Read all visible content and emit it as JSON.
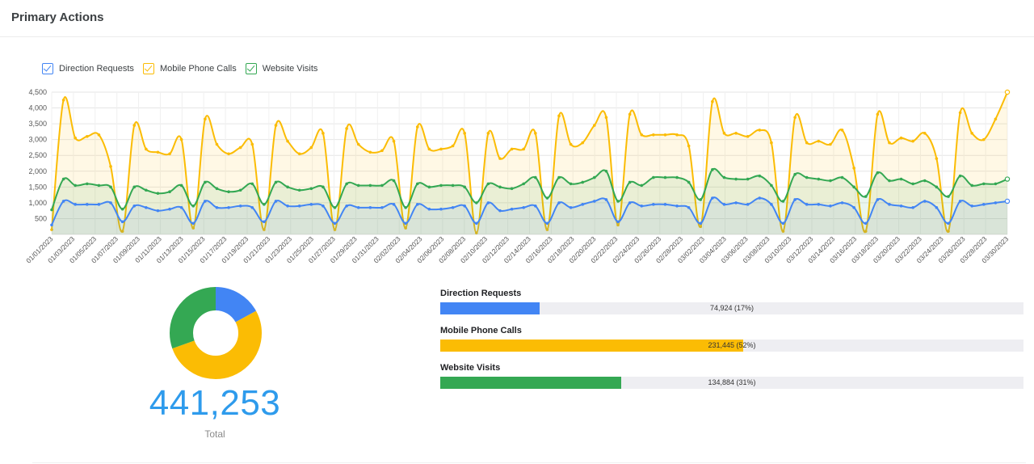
{
  "header": {
    "title": "Primary Actions"
  },
  "legend": [
    {
      "label": "Direction Requests",
      "color": "#4285f4"
    },
    {
      "label": "Mobile Phone Calls",
      "color": "#fbbc04"
    },
    {
      "label": "Website Visits",
      "color": "#34a853"
    }
  ],
  "summary": {
    "total_value": "441,253",
    "total_label": "Total",
    "items": [
      {
        "label": "Direction Requests",
        "value_text": "74,924 (17%)",
        "fraction": 0.17,
        "color": "#4285f4"
      },
      {
        "label": "Mobile Phone Calls",
        "value_text": "231,445 (52%)",
        "fraction": 0.52,
        "color": "#fbbc04"
      },
      {
        "label": "Website Visits",
        "value_text": "134,884 (31%)",
        "fraction": 0.31,
        "color": "#34a853"
      }
    ]
  },
  "chart_data": [
    {
      "type": "line",
      "ylim": [
        0,
        4500
      ],
      "yticks": [
        "500",
        "1,000",
        "1,500",
        "2,000",
        "2,500",
        "3,000",
        "3,500",
        "4,000",
        "4,500"
      ],
      "xticks": [
        "01/01/2023",
        "01/03/2023",
        "01/05/2023",
        "01/07/2023",
        "01/09/2023",
        "01/11/2023",
        "01/13/2023",
        "01/15/2023",
        "01/17/2023",
        "01/19/2023",
        "01/21/2023",
        "01/23/2023",
        "01/25/2023",
        "01/27/2023",
        "01/29/2023",
        "01/31/2023",
        "02/02/2023",
        "02/04/2023",
        "02/06/2023",
        "02/08/2023",
        "02/10/2023",
        "02/12/2023",
        "02/14/2023",
        "02/16/2023",
        "02/18/2023",
        "02/20/2023",
        "02/22/2023",
        "02/24/2023",
        "02/26/2023",
        "02/28/2023",
        "03/02/2023",
        "03/04/2023",
        "03/06/2023",
        "03/08/2023",
        "03/10/2023",
        "03/12/2023",
        "03/14/2023",
        "03/16/2023",
        "03/18/2023",
        "03/20/2023",
        "03/22/2023",
        "03/24/2023",
        "03/26/2023",
        "03/28/2023",
        "03/30/2023"
      ],
      "grid": true,
      "legend": "top-left",
      "series": [
        {
          "name": "Mobile Phone Calls",
          "color": "#fbbc04",
          "values": [
            150,
            4250,
            3050,
            3100,
            3150,
            2150,
            100,
            3450,
            2700,
            2600,
            2550,
            3000,
            200,
            3650,
            2850,
            2550,
            2750,
            2850,
            150,
            3450,
            2950,
            2550,
            2750,
            3200,
            150,
            3350,
            2850,
            2600,
            2650,
            2950,
            200,
            3400,
            2700,
            2700,
            2800,
            3200,
            50,
            3200,
            2400,
            2700,
            2700,
            3200,
            150,
            3750,
            2850,
            2900,
            3450,
            3700,
            300,
            3800,
            3150,
            3150,
            3150,
            3150,
            2800,
            250,
            4200,
            3200,
            3200,
            3100,
            3300,
            2900,
            100,
            3700,
            2900,
            2950,
            2850,
            3300,
            2100,
            100,
            3800,
            2900,
            3050,
            2950,
            3200,
            2400,
            100,
            3850,
            3200,
            3000,
            3650,
            4500
          ]
        },
        {
          "name": "Website Visits",
          "color": "#34a853",
          "values": [
            780,
            1750,
            1550,
            1600,
            1550,
            1500,
            800,
            1500,
            1400,
            1300,
            1350,
            1550,
            900,
            1650,
            1450,
            1350,
            1400,
            1600,
            950,
            1650,
            1500,
            1400,
            1450,
            1500,
            850,
            1600,
            1550,
            1550,
            1550,
            1700,
            850,
            1600,
            1500,
            1550,
            1550,
            1500,
            1000,
            1600,
            1500,
            1450,
            1600,
            1800,
            1150,
            1800,
            1600,
            1650,
            1800,
            2000,
            1050,
            1650,
            1550,
            1800,
            1800,
            1800,
            1650,
            1100,
            2050,
            1800,
            1750,
            1750,
            1850,
            1550,
            1050,
            1900,
            1800,
            1750,
            1700,
            1800,
            1500,
            1200,
            1950,
            1700,
            1750,
            1600,
            1700,
            1500,
            1200,
            1850,
            1550,
            1600,
            1600,
            1750
          ]
        },
        {
          "name": "Direction Requests",
          "color": "#4285f4",
          "values": [
            300,
            1050,
            950,
            950,
            950,
            1000,
            400,
            900,
            850,
            750,
            800,
            850,
            350,
            1050,
            850,
            850,
            900,
            850,
            400,
            1050,
            900,
            900,
            950,
            900,
            350,
            900,
            850,
            850,
            850,
            950,
            350,
            950,
            800,
            800,
            850,
            900,
            350,
            1000,
            750,
            800,
            850,
            900,
            350,
            1000,
            850,
            950,
            1050,
            1100,
            400,
            1000,
            900,
            950,
            950,
            900,
            850,
            350,
            1150,
            950,
            1000,
            950,
            1150,
            950,
            350,
            1100,
            950,
            950,
            900,
            1000,
            850,
            350,
            1100,
            950,
            900,
            850,
            1050,
            850,
            350,
            1050,
            900,
            950,
            1000,
            1050
          ]
        }
      ]
    },
    {
      "type": "pie",
      "categories": [
        "Direction Requests",
        "Mobile Phone Calls",
        "Website Visits"
      ],
      "values": [
        74924,
        231445,
        134884
      ],
      "colors": [
        "#4285f4",
        "#fbbc04",
        "#34a853"
      ]
    }
  ]
}
